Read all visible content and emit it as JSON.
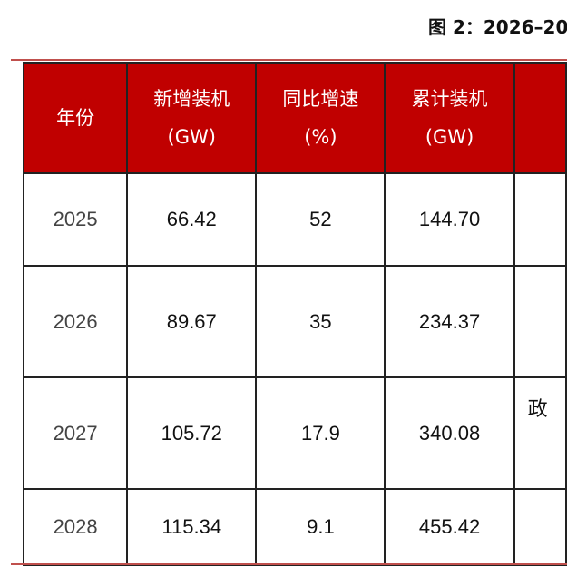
{
  "title": "图 2：2026–20",
  "table": {
    "header": [
      [
        "年份"
      ],
      [
        "新增装机",
        "(GW)"
      ],
      [
        "同比增速",
        "(%)"
      ],
      [
        "累计装机",
        "(GW)"
      ],
      []
    ],
    "rows": [
      [
        "2025",
        "66.42",
        "52",
        "144.70",
        ""
      ],
      [
        "2026",
        "89.67",
        "35",
        "234.37",
        ""
      ],
      [
        "2027",
        "105.72",
        "17.9",
        "340.08",
        "政"
      ],
      [
        "2028",
        "115.34",
        "9.1",
        "455.42",
        ""
      ]
    ]
  }
}
